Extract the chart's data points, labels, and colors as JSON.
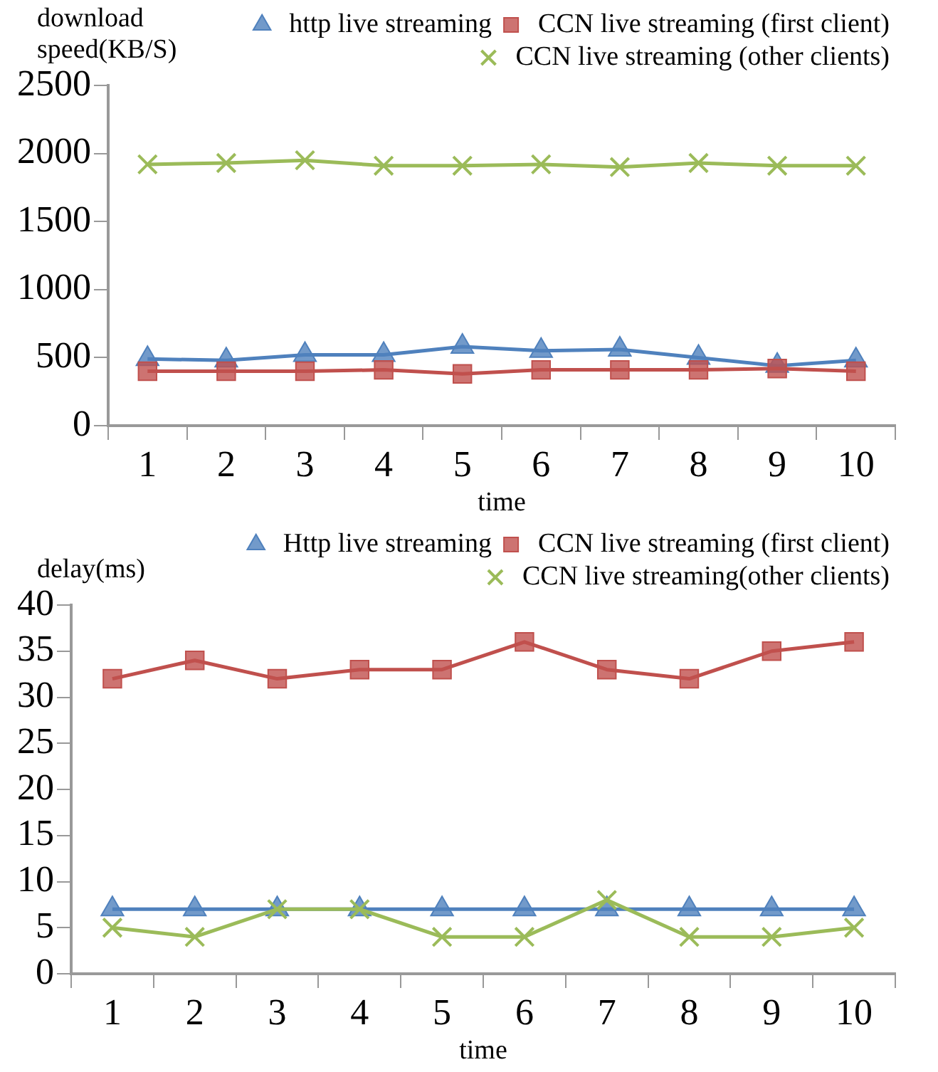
{
  "chart_data": [
    {
      "type": "line",
      "ylabel": "download speed(KB/S)",
      "xlabel": "time",
      "categories": [
        "1",
        "2",
        "3",
        "4",
        "5",
        "6",
        "7",
        "8",
        "9",
        "10"
      ],
      "ylim": [
        0,
        2500
      ],
      "yticks": [
        0,
        500,
        1000,
        1500,
        2000,
        2500
      ],
      "grid": false,
      "legend": "top right",
      "line_style": "solid",
      "series": [
        {
          "name": "http live streaming",
          "color": "#4f81bd",
          "marker": "triangle",
          "values": [
            490,
            480,
            520,
            520,
            580,
            550,
            560,
            500,
            440,
            480
          ]
        },
        {
          "name": "CCN live streaming (first client)",
          "color": "#c0504d",
          "marker": "square",
          "values": [
            400,
            400,
            400,
            410,
            380,
            410,
            410,
            410,
            420,
            400
          ]
        },
        {
          "name": "CCN live streaming (other clients)",
          "color": "#9bbb59",
          "marker": "cross",
          "values": [
            1920,
            1930,
            1950,
            1910,
            1910,
            1920,
            1900,
            1930,
            1910,
            1910
          ]
        }
      ]
    },
    {
      "type": "line",
      "ylabel": "delay(ms)",
      "xlabel": "time",
      "categories": [
        "1",
        "2",
        "3",
        "4",
        "5",
        "6",
        "7",
        "8",
        "9",
        "10"
      ],
      "ylim": [
        0,
        40
      ],
      "yticks": [
        0,
        5,
        10,
        15,
        20,
        25,
        30,
        35,
        40
      ],
      "grid": false,
      "legend": "top right",
      "line_style": "solid",
      "series": [
        {
          "name": "Http live streaming",
          "color": "#4f81bd",
          "marker": "triangle",
          "values": [
            7,
            7,
            7,
            7,
            7,
            7,
            7,
            7,
            7,
            7
          ]
        },
        {
          "name": "CCN live streaming (first client)",
          "color": "#c0504d",
          "marker": "square",
          "values": [
            32,
            34,
            32,
            33,
            33,
            36,
            33,
            32,
            35,
            36
          ]
        },
        {
          "name": "CCN live streaming(other clients)",
          "color": "#9bbb59",
          "marker": "cross",
          "values": [
            5,
            4,
            7,
            7,
            4,
            4,
            8,
            4,
            4,
            5
          ]
        }
      ]
    }
  ]
}
